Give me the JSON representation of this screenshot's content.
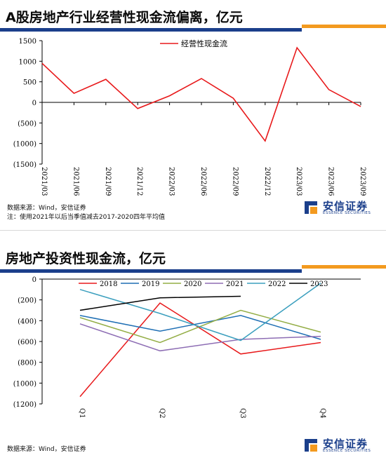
{
  "panel1": {
    "title": "A股房地产行业经营性现金流偏离，亿元",
    "source": "数据来源：Wind，安信证券",
    "note": "注：使用2021年以后当季值减去2017-2020四年平均值",
    "logo": {
      "name": "安信证券",
      "en": "ESSENCE SECURITIES",
      "icon": "essence-logo-icon"
    }
  },
  "panel2": {
    "title": "房地产投资性现金流，亿元",
    "source": "数据来源：Wind，安信证券",
    "logo": {
      "name": "安信证券",
      "en": "ESSENCE SECURITIES",
      "icon": "essence-logo-icon"
    }
  },
  "colors": {
    "blue_rule": "#1b3f8b",
    "orange_rule": "#f39a1f"
  },
  "chart_data": [
    {
      "type": "line",
      "categories": [
        "2021/03",
        "2021/06",
        "2021/09",
        "2021/12",
        "2022/03",
        "2022/06",
        "2022/09",
        "2022/12",
        "2023/03",
        "2023/06",
        "2023/09"
      ],
      "series": [
        {
          "name": "经营性现金流",
          "color": "#e8191b",
          "values": [
            950,
            220,
            560,
            -150,
            160,
            580,
            100,
            -940,
            1330,
            310,
            -100
          ]
        }
      ],
      "ylim": [
        -1500,
        1500
      ],
      "yticks": [
        "1500",
        "1000",
        "500",
        "0",
        "(500)",
        "(1000)",
        "(1500)"
      ],
      "legend": "top-center",
      "grid": false
    },
    {
      "type": "line",
      "categories": [
        "Q1",
        "Q2",
        "Q3",
        "Q4"
      ],
      "series": [
        {
          "name": "2018",
          "color": "#e8191b",
          "values": [
            -1130,
            -230,
            -720,
            -610
          ]
        },
        {
          "name": "2019",
          "color": "#1f6fb4",
          "values": [
            -350,
            -500,
            -350,
            -580
          ]
        },
        {
          "name": "2020",
          "color": "#93ad45",
          "values": [
            -370,
            -610,
            -300,
            -510
          ]
        },
        {
          "name": "2021",
          "color": "#8d6db4",
          "values": [
            -430,
            -690,
            -580,
            -550
          ]
        },
        {
          "name": "2022",
          "color": "#3b9fbe",
          "values": [
            -100,
            -330,
            -590,
            -40
          ]
        },
        {
          "name": "2023",
          "color": "#000000",
          "values": [
            -300,
            -180,
            -165,
            null
          ]
        }
      ],
      "ylim": [
        -1200,
        0
      ],
      "yticks": [
        "0",
        "(200)",
        "(400)",
        "(600)",
        "(800)",
        "(1000)",
        "(1200)"
      ],
      "legend": "top",
      "grid": false
    }
  ]
}
